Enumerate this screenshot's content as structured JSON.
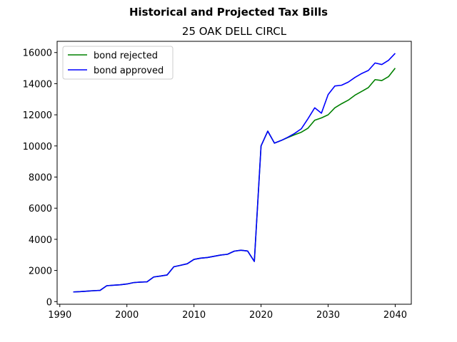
{
  "chart_data": {
    "type": "line",
    "suptitle": "Historical and Projected Tax Bills",
    "title": "25 OAK DELL CIRCL",
    "xlabel": "",
    "ylabel": "",
    "xlim": [
      1989.6,
      2042.4
    ],
    "ylim": [
      -170,
      16720
    ],
    "x_ticks": [
      1990,
      2000,
      2010,
      2020,
      2030,
      2040
    ],
    "y_ticks": [
      0,
      2000,
      4000,
      6000,
      8000,
      10000,
      12000,
      14000,
      16000
    ],
    "legend_position": "upper left",
    "grid": false,
    "series": [
      {
        "name": "bond rejected",
        "color": "#008000",
        "x": [
          1992,
          1993,
          1994,
          1995,
          1996,
          1997,
          1998,
          1999,
          2000,
          2001,
          2002,
          2003,
          2004,
          2005,
          2006,
          2007,
          2008,
          2009,
          2010,
          2011,
          2012,
          2013,
          2014,
          2015,
          2016,
          2017,
          2018,
          2019,
          2020,
          2021,
          2022,
          2023,
          2024,
          2025,
          2026,
          2027,
          2028,
          2029,
          2030,
          2031,
          2032,
          2033,
          2034,
          2035,
          2036,
          2037,
          2038,
          2039,
          2040
        ],
        "values": [
          620,
          640,
          670,
          700,
          720,
          1020,
          1050,
          1080,
          1130,
          1220,
          1250,
          1270,
          1580,
          1640,
          1710,
          2240,
          2330,
          2430,
          2710,
          2790,
          2830,
          2910,
          2990,
          3040,
          3240,
          3300,
          3250,
          2580,
          10000,
          10950,
          10180,
          10350,
          10540,
          10720,
          10880,
          11140,
          11650,
          11800,
          12000,
          12450,
          12710,
          12940,
          13260,
          13500,
          13750,
          14260,
          14200,
          14450,
          15000
        ]
      },
      {
        "name": "bond approved",
        "color": "#0000ff",
        "x": [
          1992,
          1993,
          1994,
          1995,
          1996,
          1997,
          1998,
          1999,
          2000,
          2001,
          2002,
          2003,
          2004,
          2005,
          2006,
          2007,
          2008,
          2009,
          2010,
          2011,
          2012,
          2013,
          2014,
          2015,
          2016,
          2017,
          2018,
          2019,
          2020,
          2021,
          2022,
          2023,
          2024,
          2025,
          2026,
          2027,
          2028,
          2029,
          2030,
          2031,
          2032,
          2033,
          2034,
          2035,
          2036,
          2037,
          2038,
          2039,
          2040
        ],
        "values": [
          620,
          640,
          670,
          700,
          720,
          1020,
          1050,
          1080,
          1130,
          1220,
          1250,
          1270,
          1580,
          1640,
          1710,
          2240,
          2330,
          2430,
          2710,
          2790,
          2830,
          2910,
          2990,
          3040,
          3240,
          3300,
          3250,
          2580,
          10000,
          10950,
          10180,
          10350,
          10560,
          10800,
          11100,
          11750,
          12450,
          12100,
          13300,
          13850,
          13900,
          14100,
          14400,
          14650,
          14850,
          15330,
          15230,
          15500,
          15950
        ]
      }
    ]
  }
}
